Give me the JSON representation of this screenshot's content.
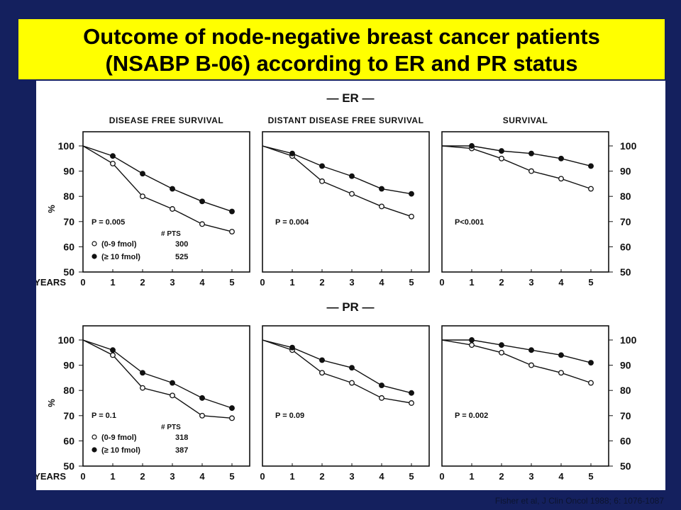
{
  "title": {
    "line1": "Outcome of node-negative breast cancer patients",
    "line2": "(NSABP B-06) according to ER and PR status"
  },
  "citation": "Fisher et al, J Clin Oncol 1988; 6: 1076-1087",
  "colors": {
    "background": "#14205e",
    "title_bg": "#ffff00",
    "ink": "#111111"
  },
  "chart_data": [
    {
      "type": "line",
      "section": "— ER —",
      "title": "DISEASE FREE SURVIVAL",
      "ylabel": "%",
      "x_axis_label": "YEARS",
      "x": [
        0,
        1,
        2,
        3,
        4,
        5
      ],
      "ylim": [
        50,
        100
      ],
      "yticks": [
        50,
        60,
        70,
        80,
        90,
        100
      ],
      "y_axis_side": "left",
      "p_value": "P = 0.005",
      "legend_header": "# PTS",
      "series": [
        {
          "name": "(0-9 fmol)",
          "pts": "300",
          "marker": "open",
          "values": [
            100,
            93,
            80,
            75,
            69,
            66
          ]
        },
        {
          "name": "(≥ 10 fmol)",
          "pts": "525",
          "marker": "filled",
          "values": [
            100,
            96,
            89,
            83,
            78,
            74
          ]
        }
      ]
    },
    {
      "type": "line",
      "section": "— ER —",
      "title": "DISTANT DISEASE FREE SURVIVAL",
      "x_axis_label": "YEARS",
      "x": [
        0,
        1,
        2,
        3,
        4,
        5
      ],
      "ylim": [
        50,
        100
      ],
      "p_value": "P = 0.004",
      "series": [
        {
          "marker": "open",
          "values": [
            100,
            96,
            86,
            81,
            76,
            72
          ]
        },
        {
          "marker": "filled",
          "values": [
            100,
            97,
            92,
            88,
            83,
            81
          ]
        }
      ]
    },
    {
      "type": "line",
      "section": "— ER —",
      "title": "SURVIVAL",
      "x_axis_label": "YEARS",
      "x": [
        0,
        1,
        2,
        3,
        4,
        5
      ],
      "ylim": [
        50,
        100
      ],
      "yticks": [
        50,
        60,
        70,
        80,
        90,
        100
      ],
      "y_axis_side": "right",
      "p_value": "P<0.001",
      "series": [
        {
          "marker": "open",
          "values": [
            100,
            99,
            95,
            90,
            87,
            83
          ]
        },
        {
          "marker": "filled",
          "values": [
            100,
            100,
            98,
            97,
            95,
            92
          ]
        }
      ]
    },
    {
      "type": "line",
      "section": "— PR —",
      "title": "",
      "ylabel": "%",
      "x_axis_label": "YEARS",
      "x": [
        0,
        1,
        2,
        3,
        4,
        5
      ],
      "ylim": [
        50,
        100
      ],
      "yticks": [
        50,
        60,
        70,
        80,
        90,
        100
      ],
      "y_axis_side": "left",
      "p_value": "P = 0.1",
      "legend_header": "# PTS",
      "series": [
        {
          "name": "(0-9 fmol)",
          "pts": "318",
          "marker": "open",
          "values": [
            100,
            94,
            81,
            78,
            70,
            69
          ]
        },
        {
          "name": "(≥ 10 fmol)",
          "pts": "387",
          "marker": "filled",
          "values": [
            100,
            96,
            87,
            83,
            77,
            73
          ]
        }
      ]
    },
    {
      "type": "line",
      "section": "— PR —",
      "title": "",
      "x_axis_label": "YEARS",
      "x": [
        0,
        1,
        2,
        3,
        4,
        5
      ],
      "ylim": [
        50,
        100
      ],
      "p_value": "P = 0.09",
      "series": [
        {
          "marker": "open",
          "values": [
            100,
            96,
            87,
            83,
            77,
            75
          ]
        },
        {
          "marker": "filled",
          "values": [
            100,
            97,
            92,
            89,
            82,
            79
          ]
        }
      ]
    },
    {
      "type": "line",
      "section": "— PR —",
      "title": "",
      "x_axis_label": "YEARS",
      "x": [
        0,
        1,
        2,
        3,
        4,
        5
      ],
      "ylim": [
        50,
        100
      ],
      "yticks": [
        50,
        60,
        70,
        80,
        90,
        100
      ],
      "y_axis_side": "right",
      "p_value": "P = 0.002",
      "series": [
        {
          "marker": "open",
          "values": [
            100,
            98,
            95,
            90,
            87,
            83
          ]
        },
        {
          "marker": "filled",
          "values": [
            100,
            100,
            98,
            96,
            94,
            91
          ]
        }
      ]
    }
  ]
}
